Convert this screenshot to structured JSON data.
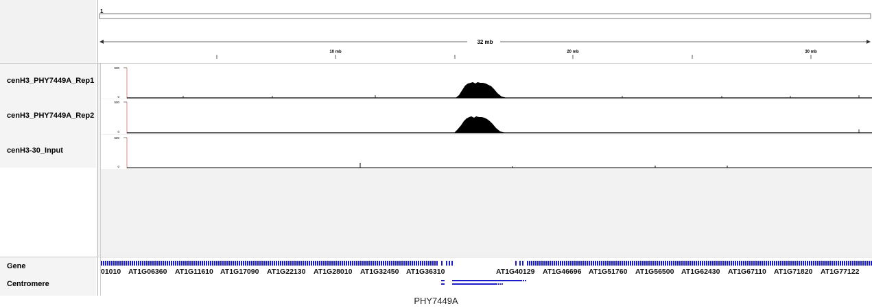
{
  "header": {
    "chromosome_label": "1",
    "span_label": "32 mb",
    "ruler_ticks": [
      {
        "label": "10 mb"
      },
      {
        "label": "20 mb"
      },
      {
        "label": "30 mb"
      }
    ]
  },
  "tracks": [
    {
      "name": "cenH3_PHY7449A_Rep1",
      "scale_max": "500",
      "scale_min": "0"
    },
    {
      "name": "cenH3_PHY7449A_Rep2",
      "scale_max": "500",
      "scale_min": "0"
    },
    {
      "name": "cenH3-30_Input",
      "scale_max": "500",
      "scale_min": "0"
    }
  ],
  "annotation_tracks": {
    "gene_label": "Gene",
    "centromere_label": "Centromere",
    "gene_names": [
      "01010",
      "AT1G06360",
      "AT1G11610",
      "AT1G17090",
      "AT1G22130",
      "AT1G28010",
      "AT1G32450",
      "AT1G36310",
      "AT1G40129",
      "AT1G46696",
      "AT1G51760",
      "AT1G56500",
      "AT1G62430",
      "AT1G67110",
      "AT1G71820",
      "AT1G77122"
    ]
  },
  "colors": {
    "gene_feature": "#1a1ac8",
    "signal": "#000000",
    "scale_marker": "#c0392b"
  },
  "footer": {
    "caption": "PHY7449A"
  }
}
